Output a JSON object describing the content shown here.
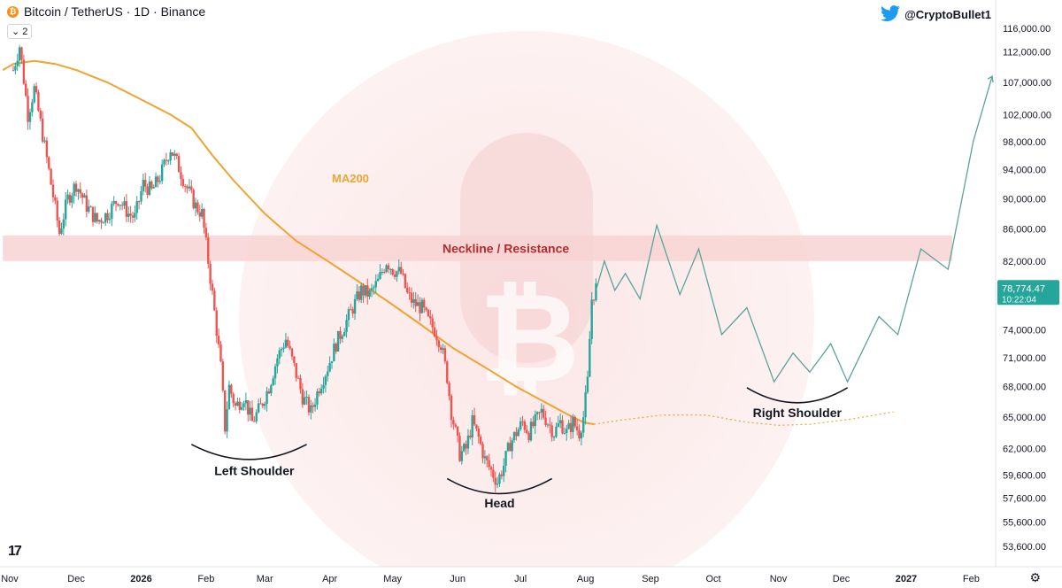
{
  "header": {
    "symbol": "Bitcoin / TetherUS · 1D · Binance",
    "sub_indicator": "2",
    "author": "@CryptoBullet1",
    "coin_icon_glyph": "₿",
    "bird_icon": "twitter-icon",
    "collapse_icon_glyph": "⌄",
    "platform_logo": "17"
  },
  "price_tag": {
    "value": "78,774.47",
    "countdown": "10:22:04"
  },
  "colors": {
    "up": "#26a69a",
    "down": "#ef5350",
    "ma": "#f0a430",
    "projection": "#5aa39a",
    "zone": "#f8d4d4",
    "zone_label": "#b22d30",
    "price_tag_bg": "#26a69a"
  },
  "chart_data": {
    "type": "candlestick",
    "title": "",
    "y_scale": "log",
    "ylim": [
      52000,
      121000
    ],
    "y_ticks": [
      "116,000.00",
      "112,000.00",
      "107,000.00",
      "102,000.00",
      "98,000.00",
      "94,000.00",
      "90,000.00",
      "86,000.00",
      "82,000.00",
      "78,000.00",
      "74,000.00",
      "71,000.00",
      "68,000.00",
      "65,000.00",
      "62,000.00",
      "59,600.00",
      "57,600.00",
      "55,600.00",
      "53,600.00"
    ],
    "x_ticks": [
      "Nov",
      "Dec",
      "2026",
      "Feb",
      "Mar",
      "Apr",
      "May",
      "Jun",
      "Jul",
      "Aug",
      "Sep",
      "Oct",
      "Nov",
      "Dec",
      "2027",
      "Feb"
    ],
    "x_tick_days": [
      0,
      30,
      61,
      92,
      120,
      151,
      181,
      212,
      242,
      273,
      304,
      334,
      365,
      395,
      426,
      457
    ],
    "bold_ticks": [
      "2026",
      "2027"
    ],
    "candle_anchors": [
      [
        0,
        109000
      ],
      [
        3,
        113000
      ],
      [
        7,
        102000
      ],
      [
        10,
        106000
      ],
      [
        14,
        99000
      ],
      [
        18,
        92000
      ],
      [
        22,
        85500
      ],
      [
        26,
        90000
      ],
      [
        30,
        92000
      ],
      [
        35,
        89000
      ],
      [
        40,
        87000
      ],
      [
        45,
        88000
      ],
      [
        50,
        90000
      ],
      [
        55,
        88000
      ],
      [
        58,
        87500
      ],
      [
        62,
        92000
      ],
      [
        66,
        91000
      ],
      [
        70,
        93000
      ],
      [
        75,
        97000
      ],
      [
        78,
        95000
      ],
      [
        82,
        92000
      ],
      [
        87,
        89000
      ],
      [
        90,
        88000
      ],
      [
        92,
        84000
      ],
      [
        95,
        78000
      ],
      [
        97,
        74000
      ],
      [
        99,
        70000
      ],
      [
        101,
        64000
      ],
      [
        103,
        68000
      ],
      [
        106,
        66000
      ],
      [
        110,
        67000
      ],
      [
        114,
        64500
      ],
      [
        118,
        66000
      ],
      [
        122,
        68000
      ],
      [
        126,
        71000
      ],
      [
        130,
        73000
      ],
      [
        134,
        70000
      ],
      [
        138,
        67000
      ],
      [
        142,
        65500
      ],
      [
        146,
        68000
      ],
      [
        150,
        70000
      ],
      [
        154,
        72500
      ],
      [
        158,
        74500
      ],
      [
        162,
        76500
      ],
      [
        166,
        78500
      ],
      [
        170,
        78000
      ],
      [
        174,
        79500
      ],
      [
        178,
        82000
      ],
      [
        181,
        81000
      ],
      [
        185,
        80500
      ],
      [
        188,
        78000
      ],
      [
        191,
        77000
      ],
      [
        195,
        76500
      ],
      [
        198,
        75000
      ],
      [
        201,
        74000
      ],
      [
        204,
        72500
      ],
      [
        207,
        69000
      ],
      [
        209,
        65500
      ],
      [
        211,
        63500
      ],
      [
        213,
        61500
      ],
      [
        216,
        62000
      ],
      [
        219,
        64500
      ],
      [
        222,
        63000
      ],
      [
        225,
        61000
      ],
      [
        228,
        60000
      ],
      [
        231,
        59000
      ],
      [
        234,
        60500
      ],
      [
        237,
        62500
      ],
      [
        240,
        63500
      ],
      [
        243,
        64500
      ],
      [
        246,
        63500
      ],
      [
        249,
        64500
      ],
      [
        252,
        65500
      ],
      [
        255,
        64500
      ],
      [
        258,
        63500
      ],
      [
        261,
        64500
      ],
      [
        264,
        63500
      ],
      [
        267,
        64500
      ],
      [
        270,
        63500
      ],
      [
        272,
        65000
      ],
      [
        274,
        68500
      ],
      [
        276,
        77500
      ],
      [
        278,
        78800
      ]
    ],
    "candle_noise": 0.012,
    "ma200": {
      "name": "MA200",
      "points": [
        [
          -5,
          109000
        ],
        [
          0,
          110000
        ],
        [
          10,
          110500
        ],
        [
          20,
          110000
        ],
        [
          30,
          109000
        ],
        [
          45,
          107000
        ],
        [
          60,
          104500
        ],
        [
          75,
          102000
        ],
        [
          85,
          100000
        ],
        [
          95,
          96000
        ],
        [
          105,
          92500
        ],
        [
          120,
          88000
        ],
        [
          135,
          84500
        ],
        [
          150,
          82000
        ],
        [
          165,
          79500
        ],
        [
          180,
          77000
        ],
        [
          195,
          74500
        ],
        [
          210,
          72000
        ],
        [
          225,
          70000
        ],
        [
          240,
          68000
        ],
        [
          255,
          66300
        ],
        [
          265,
          65200
        ],
        [
          272,
          64500
        ],
        [
          277,
          64300
        ]
      ]
    },
    "ma_projection": [
      [
        277,
        64300
      ],
      [
        290,
        64700
      ],
      [
        310,
        65200
      ],
      [
        330,
        65200
      ],
      [
        350,
        64500
      ],
      [
        365,
        64200
      ],
      [
        380,
        64300
      ],
      [
        400,
        64800
      ],
      [
        420,
        65500
      ]
    ],
    "neckline": {
      "label": "Neckline / Resistance",
      "y_top": 85200,
      "y_bottom": 82000,
      "x_start": -5,
      "x_end": 448
    },
    "projection_path": [
      [
        278,
        78500
      ],
      [
        282,
        82000
      ],
      [
        287,
        78500
      ],
      [
        292,
        80500
      ],
      [
        299,
        77500
      ],
      [
        307,
        86500
      ],
      [
        318,
        78000
      ],
      [
        327,
        83500
      ],
      [
        338,
        73500
      ],
      [
        350,
        76500
      ],
      [
        363,
        68500
      ],
      [
        372,
        71500
      ],
      [
        380,
        69500
      ],
      [
        390,
        72500
      ],
      [
        398,
        68500
      ],
      [
        413,
        75500
      ],
      [
        422,
        73500
      ],
      [
        433,
        83500
      ],
      [
        446,
        81000
      ],
      [
        458,
        98000
      ],
      [
        467,
        108000
      ]
    ],
    "arrow_tip": [
      467,
      108000
    ],
    "shoulders": [
      {
        "label": "Left Shoulder",
        "x_start": 85,
        "x_end": 140,
        "y": 62400,
        "x_lbl": 115,
        "y_lbl": 59600
      },
      {
        "label": "Head",
        "x_start": 207,
        "x_end": 257,
        "y": 59300,
        "x_lbl": 232,
        "y_lbl": 56800
      },
      {
        "label": "Right Shoulder",
        "x_start": 350,
        "x_end": 398,
        "y": 67900,
        "x_lbl": 374,
        "y_lbl": 65000
      }
    ]
  }
}
